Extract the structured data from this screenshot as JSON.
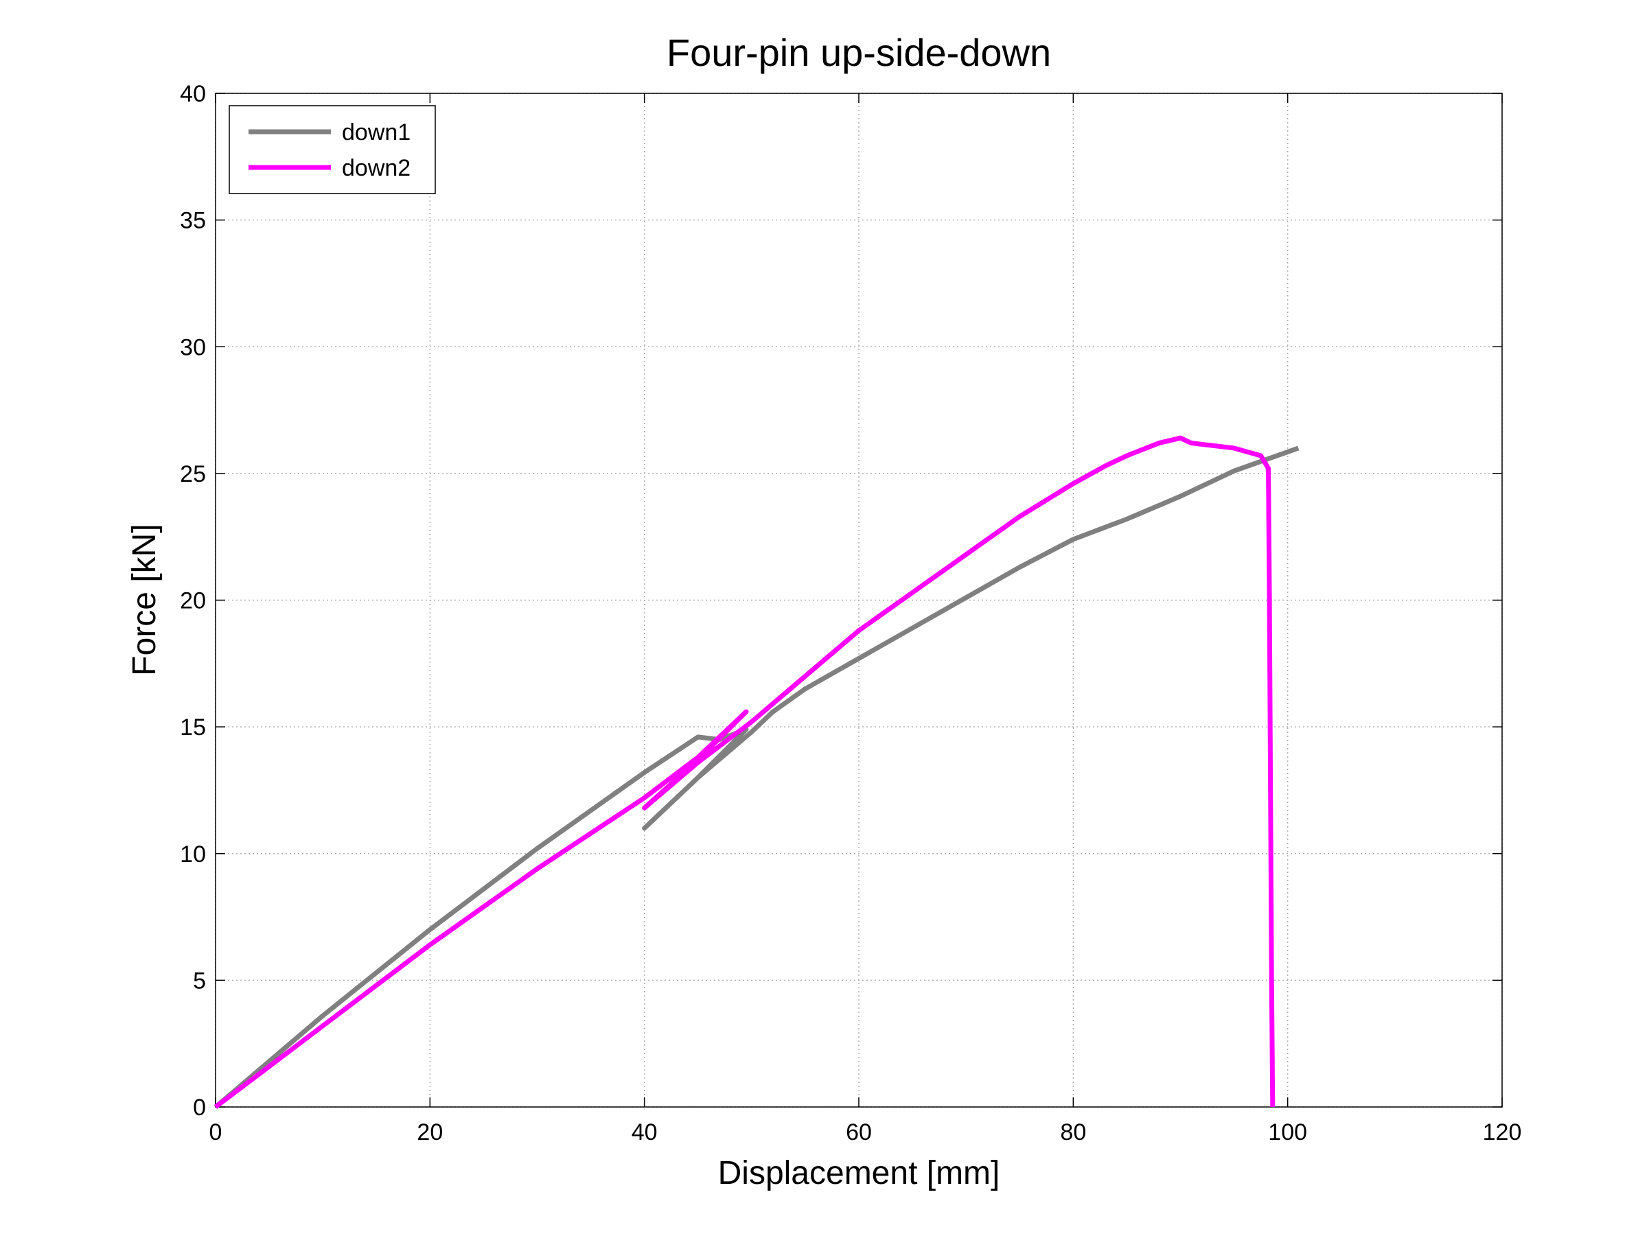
{
  "chart_data": {
    "type": "line",
    "title": "Four-pin up-side-down",
    "xlabel": "Displacement [mm]",
    "ylabel": "Force [kN]",
    "xlim": [
      0,
      120
    ],
    "xticks": [
      0,
      20,
      40,
      60,
      80,
      100,
      120
    ],
    "ylim": [
      0,
      40
    ],
    "yticks": [
      0,
      5,
      10,
      15,
      20,
      25,
      30,
      35,
      40
    ],
    "grid": true,
    "legend": "upper left",
    "series": [
      {
        "name": "down1",
        "color": "#808080",
        "x": [
          0,
          5,
          10,
          20,
          30,
          40,
          45,
          47,
          49.5,
          45,
          40,
          45,
          50,
          52,
          55,
          60,
          65,
          70,
          75,
          80,
          85,
          90,
          95,
          101
        ],
        "values": [
          0,
          1.8,
          3.6,
          7.0,
          10.2,
          13.2,
          14.6,
          14.5,
          14.9,
          13.0,
          11.0,
          13.0,
          14.8,
          15.6,
          16.5,
          17.7,
          18.9,
          20.1,
          21.3,
          22.4,
          23.2,
          24.1,
          25.1,
          26.0
        ]
      },
      {
        "name": "down2",
        "color": "#ff00ff",
        "x": [
          0,
          10,
          20,
          30,
          40,
          45,
          49.5,
          45,
          40,
          45,
          50,
          55,
          60,
          65,
          70,
          75,
          80,
          83,
          85,
          88,
          90,
          91,
          95,
          97.5,
          98.2,
          98.3,
          98.5,
          98.6
        ],
        "values": [
          0,
          3.2,
          6.4,
          9.4,
          12.2,
          13.8,
          15.6,
          13.7,
          11.8,
          13.6,
          15.2,
          17.0,
          18.8,
          20.3,
          21.8,
          23.3,
          24.6,
          25.3,
          25.7,
          26.2,
          26.4,
          26.2,
          26.0,
          25.7,
          25.2,
          20.0,
          5.0,
          0
        ]
      }
    ]
  }
}
